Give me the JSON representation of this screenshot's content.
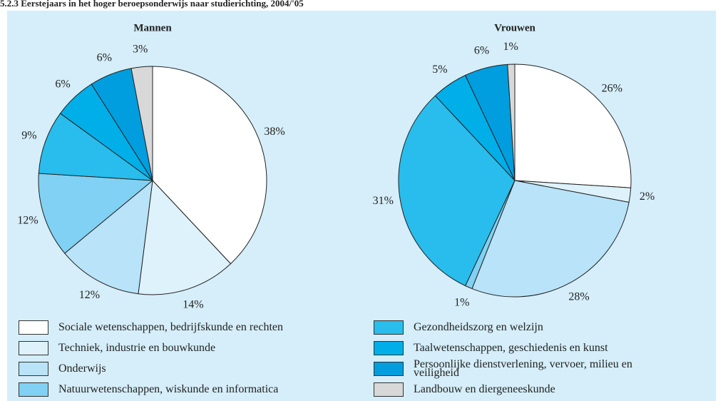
{
  "title": "5.2.3 Eerstejaars in het hoger beroepsonderwijs naar studierichting, 2004/'05",
  "chart_data": [
    {
      "type": "pie",
      "title": "Mannen",
      "categories": [
        "Sociale wetenschappen, bedrijfskunde en rechten",
        "Techniek, industrie en bouwkunde",
        "Onderwijs",
        "Natuurwetenschappen, wiskunde en informatica",
        "Gezondheidszorg en welzijn",
        "Taalwetenschappen, geschiedenis en kunst",
        "Persoonlijke dienstverlening, vervoer, milieu en veiligheid",
        "Landbouw en diergeneeskunde"
      ],
      "values": [
        38,
        14,
        12,
        12,
        9,
        6,
        6,
        3
      ],
      "value_labels": [
        "38%",
        "14%",
        "12%",
        "12%",
        "9%",
        "6%",
        "6%",
        "3%"
      ],
      "colors": [
        "#ffffff",
        "#def2fc",
        "#b8e3f8",
        "#80d1f3",
        "#28bdec",
        "#00aee8",
        "#009ddf",
        "#d8d8d8"
      ]
    },
    {
      "type": "pie",
      "title": "Vrouwen",
      "categories": [
        "Sociale wetenschappen, bedrijfskunde en rechten",
        "Techniek, industrie en bouwkunde",
        "Onderwijs",
        "Natuurwetenschappen, wiskunde en informatica",
        "Gezondheidszorg en welzijn",
        "Taalwetenschappen, geschiedenis en kunst",
        "Persoonlijke dienstverlening, vervoer, milieu en veiligheid",
        "Landbouw en diergeneeskunde"
      ],
      "values": [
        26,
        2,
        28,
        1,
        31,
        5,
        6,
        1
      ],
      "value_labels": [
        "26%",
        "2%",
        "28%",
        "1%",
        "31%",
        "5%",
        "6%",
        "1%"
      ],
      "colors": [
        "#ffffff",
        "#def2fc",
        "#b8e3f8",
        "#80d1f3",
        "#28bdec",
        "#00aee8",
        "#009ddf",
        "#d8d8d8"
      ]
    }
  ]
}
